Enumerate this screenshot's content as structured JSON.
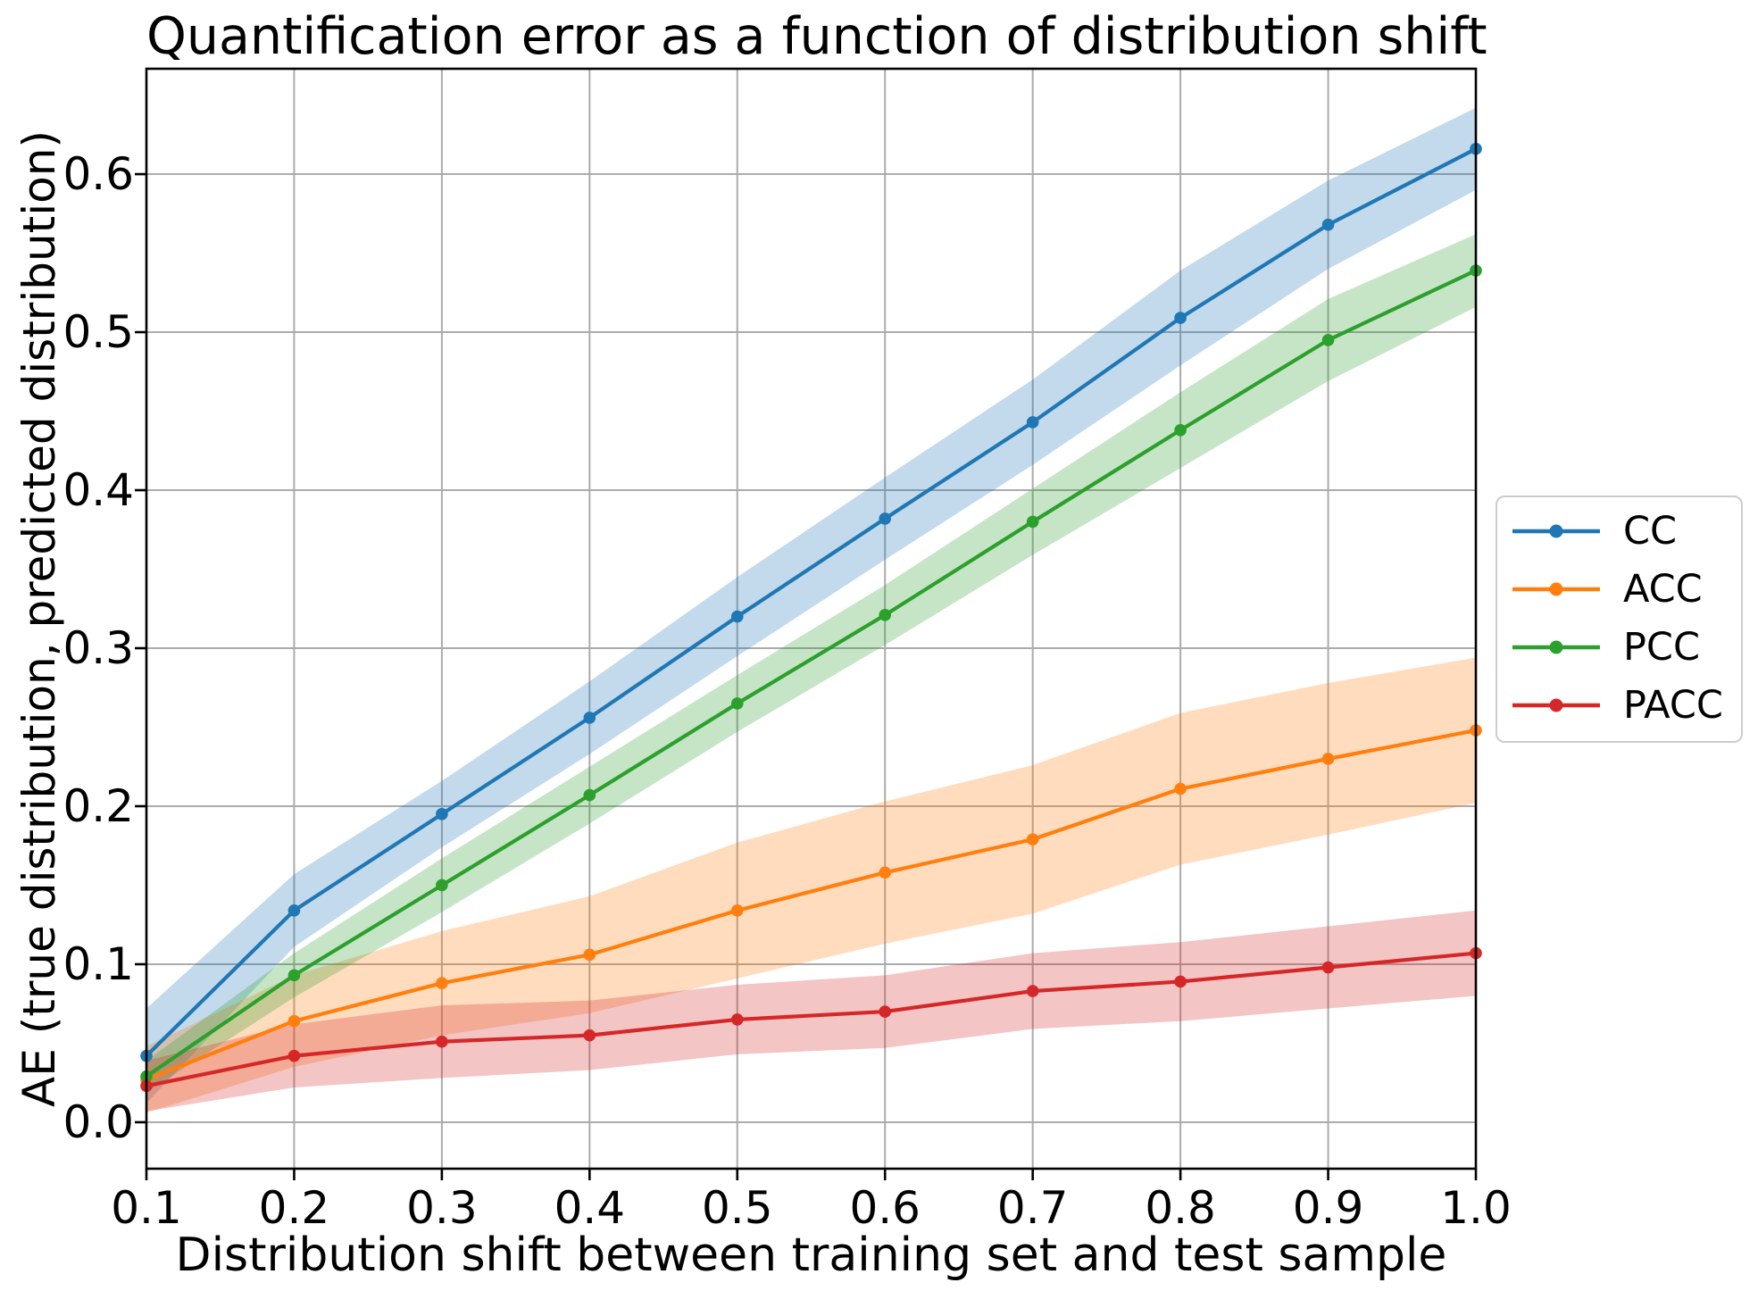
{
  "chart_data": {
    "type": "line",
    "title": "Quantification error as a function of distribution shift",
    "xlabel": "Distribution shift between training set and test sample",
    "ylabel": "AE (true distribution, predicted distribution)",
    "x": [
      0.1,
      0.2,
      0.3,
      0.4,
      0.5,
      0.6,
      0.7,
      0.8,
      0.9,
      1.0
    ],
    "x_tick_labels": [
      "0.1",
      "0.2",
      "0.3",
      "0.4",
      "0.5",
      "0.6",
      "0.7",
      "0.8",
      "0.9",
      "1.0"
    ],
    "y_ticks": [
      0.0,
      0.1,
      0.2,
      0.3,
      0.4,
      0.5,
      0.6
    ],
    "y_tick_labels": [
      "0.0",
      "0.1",
      "0.2",
      "0.3",
      "0.4",
      "0.5",
      "0.6"
    ],
    "xlim": [
      0.1,
      1.0
    ],
    "ylim": [
      -0.0294,
      0.6667
    ],
    "grid": true,
    "grid_color": "#ababab",
    "spine_color": "#000000",
    "band_alpha": 0.27,
    "legend_position": "center right, outside axes",
    "series": [
      {
        "name": "CC",
        "color": "#1f77b4",
        "values": [
          0.042,
          0.134,
          0.195,
          0.256,
          0.32,
          0.382,
          0.443,
          0.509,
          0.568,
          0.616
        ],
        "band_halfwidth": [
          0.03,
          0.023,
          0.021,
          0.023,
          0.025,
          0.026,
          0.027,
          0.03,
          0.028,
          0.026
        ]
      },
      {
        "name": "ACC",
        "color": "#ff7f0e",
        "values": [
          0.027,
          0.064,
          0.088,
          0.106,
          0.134,
          0.158,
          0.179,
          0.211,
          0.23,
          0.248
        ],
        "band_halfwidth": [
          0.021,
          0.029,
          0.033,
          0.037,
          0.043,
          0.045,
          0.047,
          0.048,
          0.048,
          0.046
        ]
      },
      {
        "name": "PCC",
        "color": "#2ca02c",
        "values": [
          0.029,
          0.093,
          0.15,
          0.207,
          0.265,
          0.321,
          0.38,
          0.438,
          0.495,
          0.539
        ],
        "band_halfwidth": [
          0.01,
          0.014,
          0.017,
          0.018,
          0.018,
          0.019,
          0.021,
          0.024,
          0.026,
          0.023
        ]
      },
      {
        "name": "PACC",
        "color": "#d62728",
        "values": [
          0.023,
          0.042,
          0.051,
          0.055,
          0.065,
          0.07,
          0.083,
          0.089,
          0.098,
          0.107
        ],
        "band_halfwidth": [
          0.016,
          0.02,
          0.023,
          0.022,
          0.022,
          0.023,
          0.024,
          0.025,
          0.026,
          0.027
        ]
      }
    ]
  }
}
